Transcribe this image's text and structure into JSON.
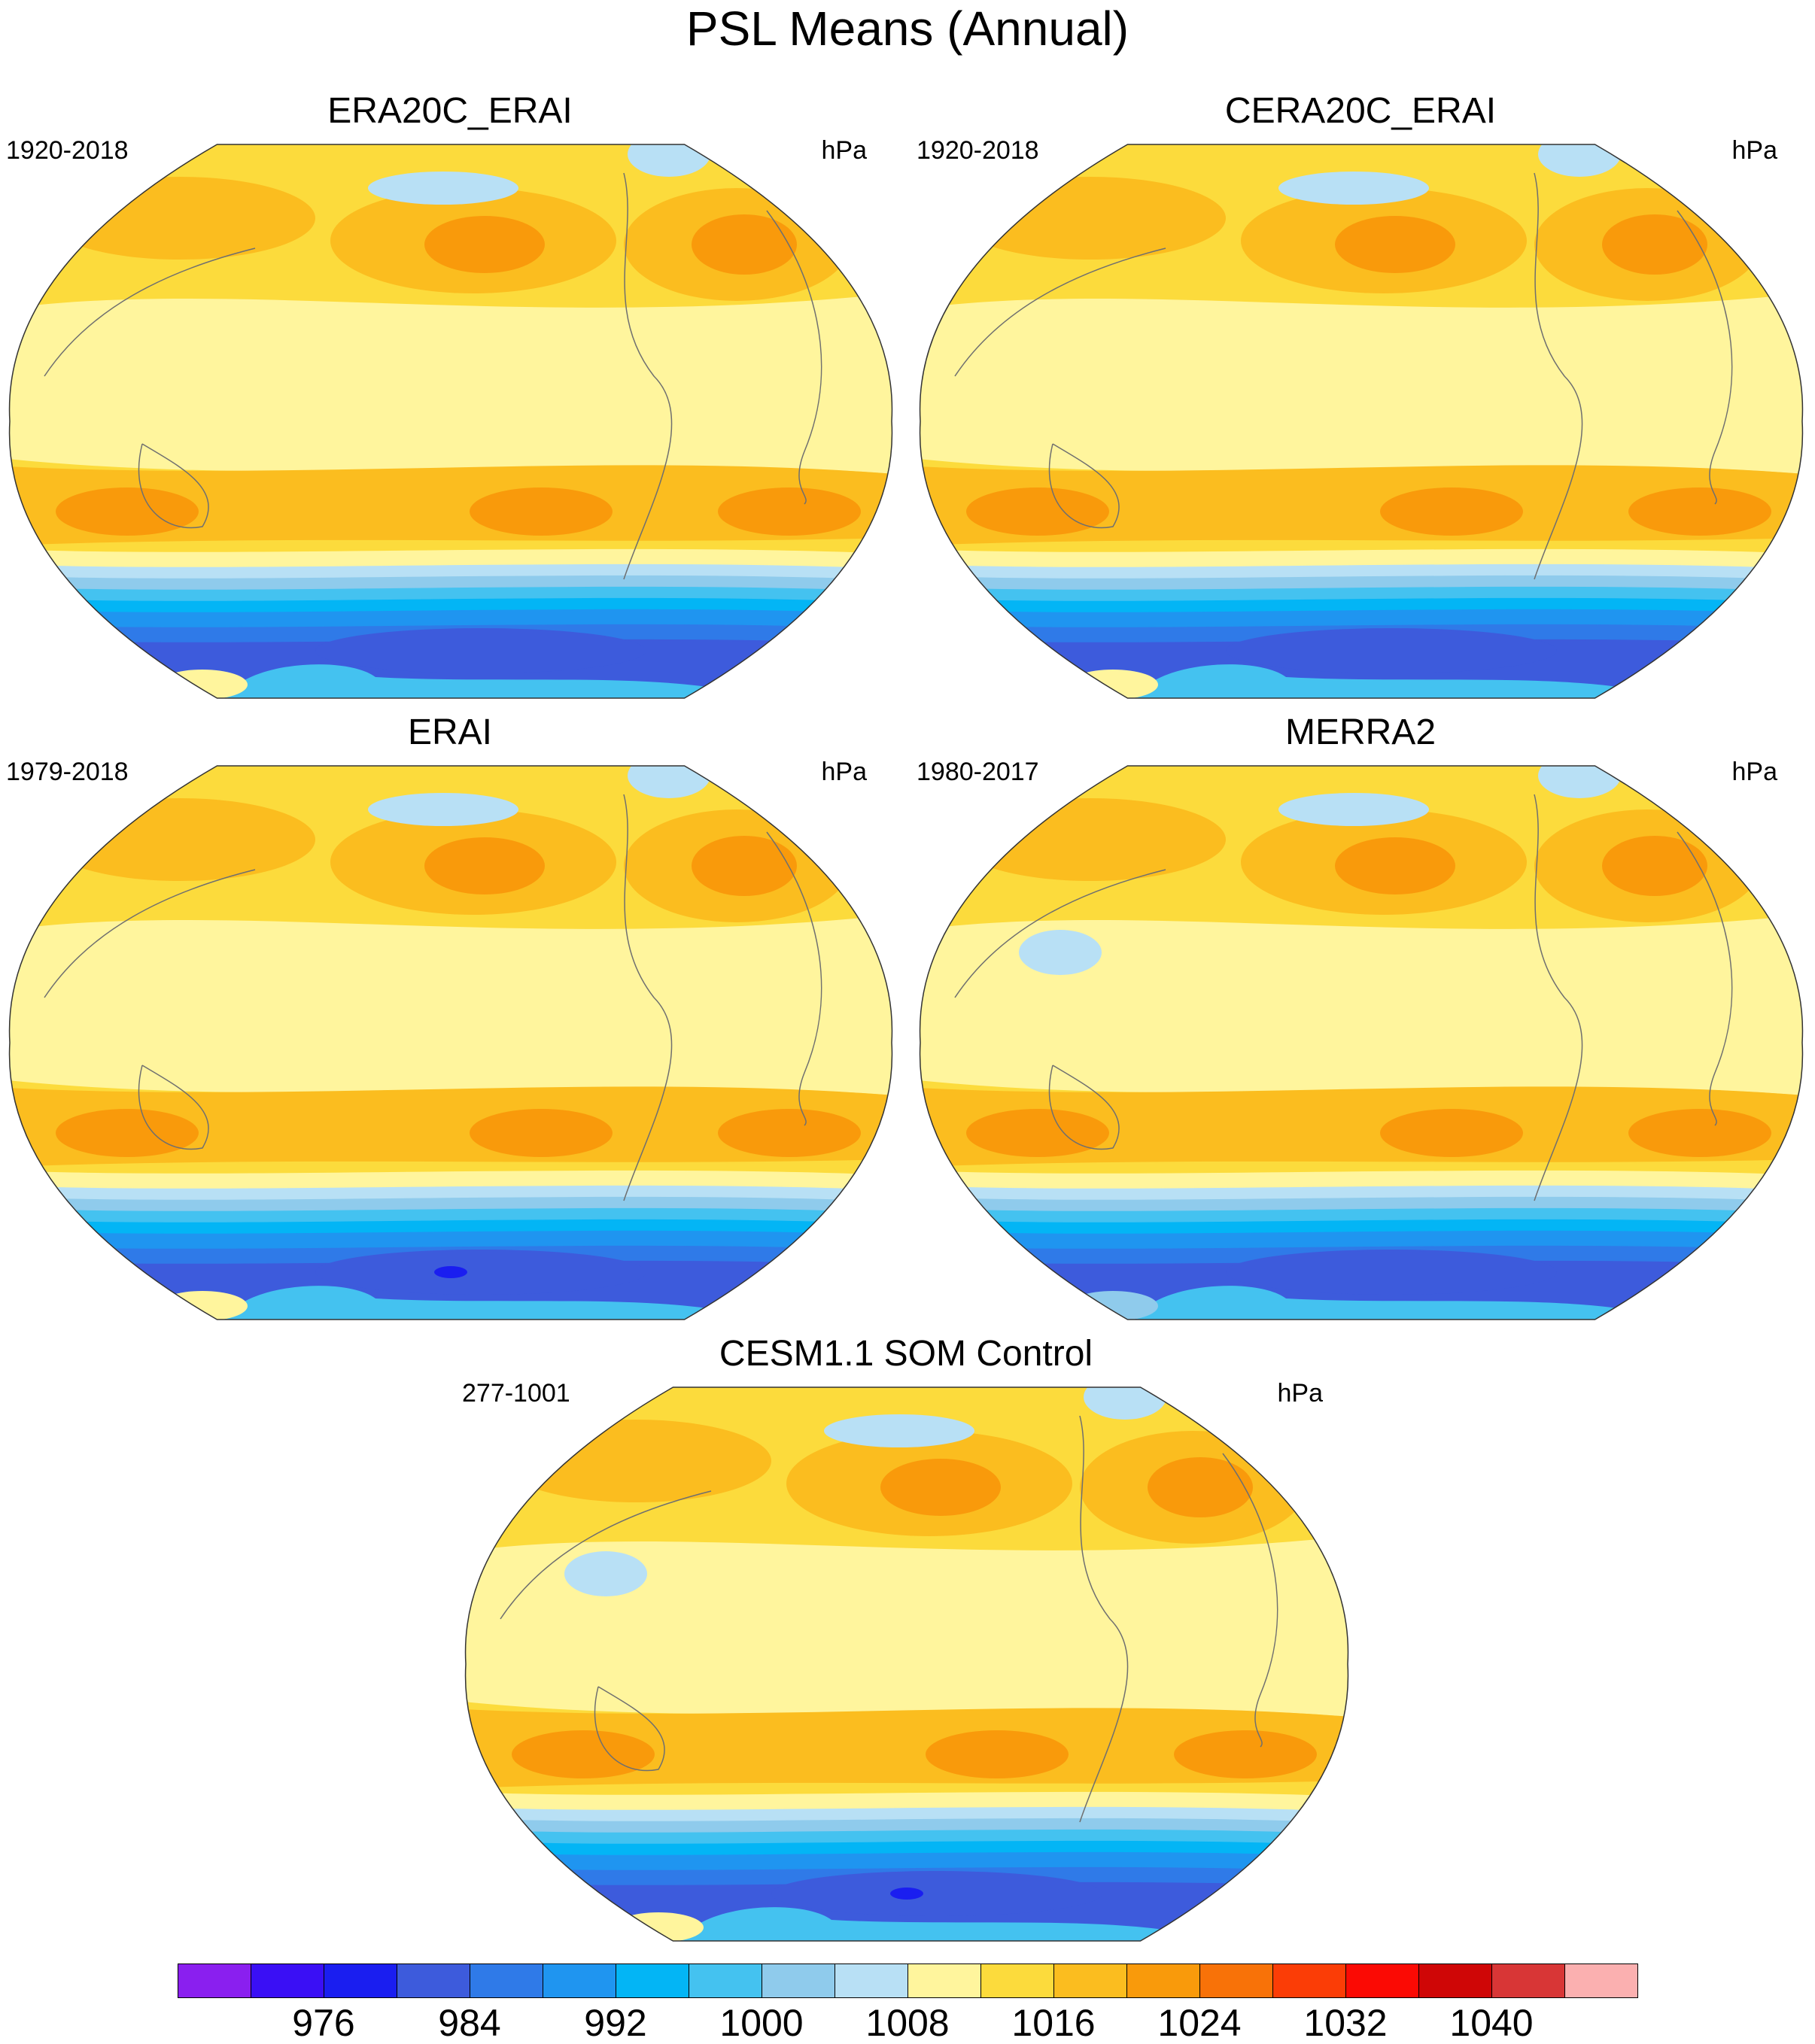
{
  "title": "PSL Means (Annual)",
  "units_label": "hPa",
  "panels": [
    {
      "name": "ERA20C_ERAI",
      "years": "1920-2018",
      "units": "hPa"
    },
    {
      "name": "CERA20C_ERAI",
      "years": "1920-2018",
      "units": "hPa"
    },
    {
      "name": "ERAI",
      "years": "1979-2018",
      "units": "hPa"
    },
    {
      "name": "MERRA2",
      "years": "1980-2017",
      "units": "hPa"
    },
    {
      "name": "CESM1.1 SOM Control",
      "years": "277-1001",
      "units": "hPa"
    }
  ],
  "colorbar": {
    "colors": [
      "#8a1fef",
      "#3a0ff5",
      "#1a1ef0",
      "#3d5bdc",
      "#2f7ae8",
      "#1f95f0",
      "#03b5f5",
      "#44c2f0",
      "#8fcbec",
      "#b8e0f5",
      "#fff59d",
      "#fcdb3c",
      "#fbbd1f",
      "#f99a0b",
      "#f87208",
      "#fb3d06",
      "#fb0a04",
      "#cf0606",
      "#d83636",
      "#fbb0b0"
    ],
    "levels": [
      976,
      984,
      992,
      1000,
      1008,
      1016,
      1024,
      1032,
      1040
    ],
    "level_positions_index": [
      2,
      4,
      6,
      8,
      10,
      12,
      14,
      16,
      18
    ]
  },
  "chart_data": {
    "type": "heatmap",
    "title": "PSL Means (Annual)",
    "variable": "PSL",
    "units": "hPa",
    "projection": "Robinson (Pacific-centred)",
    "contour_levels": [
      972,
      976,
      980,
      984,
      988,
      992,
      996,
      1000,
      1004,
      1008,
      1012,
      1016,
      1020,
      1024,
      1028,
      1032,
      1036,
      1040,
      1044
    ],
    "colorbar_labels": [
      976,
      984,
      992,
      1000,
      1008,
      1016,
      1024,
      1032,
      1040
    ],
    "panels": [
      "ERA20C_ERAI",
      "CERA20C_ERAI",
      "ERAI",
      "MERRA2",
      "CESM1.1 SOM Control"
    ],
    "periods": [
      "1920-2018",
      "1920-2018",
      "1979-2018",
      "1980-2017",
      "277-1001"
    ]
  }
}
